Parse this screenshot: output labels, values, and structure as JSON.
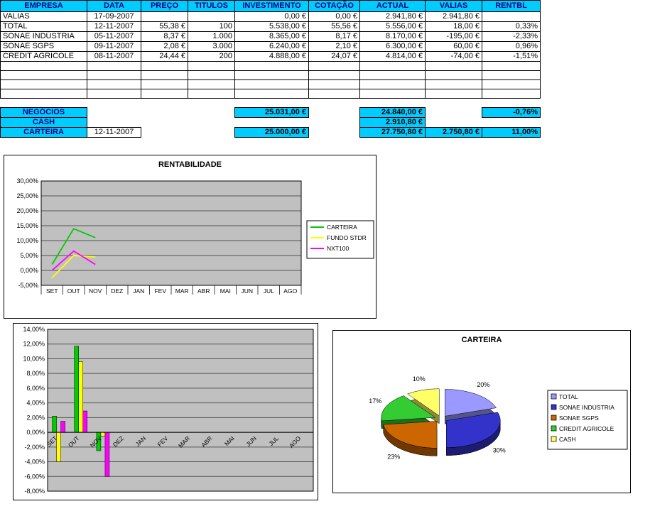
{
  "table": {
    "headers": [
      "EMPRESA",
      "DATA",
      "PREÇO",
      "TITULOS",
      "INVESTIMENTO",
      "COTAÇÃO",
      "ACTUAL",
      "VALIAS",
      "RENTBL"
    ],
    "rows": [
      [
        "VALIAS",
        "17-09-2007",
        "",
        "",
        "0,00 €",
        "0,00 €",
        "2.941,80 €",
        "2.941,80 €",
        ""
      ],
      [
        "TOTAL",
        "12-11-2007",
        "55,38 €",
        "100",
        "5.538,00 €",
        "55,56 €",
        "5.556,00 €",
        "18,00 €",
        "0,33%"
      ],
      [
        "SONAE INDÚSTRIA",
        "05-11-2007",
        "8,37 €",
        "1.000",
        "8.365,00 €",
        "8,17 €",
        "8.170,00 €",
        "-195,00 €",
        "-2,33%"
      ],
      [
        "SONAE SGPS",
        "09-11-2007",
        "2,08 €",
        "3.000",
        "6.240,00 €",
        "2,10 €",
        "6.300,00 €",
        "60,00 €",
        "0,96%"
      ],
      [
        "CREDIT AGRICOLE",
        "08-11-2007",
        "24,44 €",
        "200",
        "4.888,00 €",
        "24,07 €",
        "4.814,00 €",
        "-74,00 €",
        "-1,51%"
      ],
      [
        "",
        "",
        "",
        "",
        "",
        "",
        "",
        "",
        ""
      ],
      [
        "",
        "",
        "",
        "",
        "",
        "",
        "",
        "",
        ""
      ],
      [
        "",
        "",
        "",
        "",
        "",
        "",
        "",
        "",
        ""
      ],
      [
        "",
        "",
        "",
        "",
        "",
        "",
        "",
        "",
        ""
      ]
    ],
    "summary": [
      {
        "cells": [
          "NEGÓCIOS",
          "",
          "",
          "",
          "25.031,00 €",
          "",
          "24.840,00 €",
          "",
          "-0,76%"
        ],
        "hl": [
          0,
          4,
          6,
          8
        ]
      },
      {
        "cells": [
          "CASH",
          "",
          "",
          "",
          "",
          "",
          "2.910,80 €",
          "",
          ""
        ],
        "hl": [
          0,
          6
        ]
      },
      {
        "cells": [
          "CARTEIRA",
          "12-11-2007",
          "",
          "",
          "25.000,00 €",
          "",
          "27.750,80 €",
          "2.750,80 €",
          "11,00%"
        ],
        "hl": [
          0,
          4,
          6,
          7,
          8
        ]
      }
    ],
    "colors": {
      "highlight_bg": "#00CCFF",
      "header_text": "#000080"
    }
  },
  "chart_data": [
    {
      "type": "line",
      "title": "RENTABILIDADE",
      "categories": [
        "SET",
        "OUT",
        "NOV",
        "DEZ",
        "JAN",
        "FEV",
        "MAR",
        "ABR",
        "MAI",
        "JUN",
        "JUL",
        "AGO"
      ],
      "ylim": [
        -5,
        30
      ],
      "ystep": 5,
      "grid": true,
      "plot_bg": "#C0C0C0",
      "legend_position": "right",
      "series": [
        {
          "name": "CARTEIRA",
          "color": "#00CC00",
          "values": [
            2,
            14,
            11,
            null,
            null,
            null,
            null,
            null,
            null,
            null,
            null,
            null
          ]
        },
        {
          "name": "FUNDO STDR",
          "color": "#FFFF00",
          "values": [
            -2.5,
            5,
            4.5,
            null,
            null,
            null,
            null,
            null,
            null,
            null,
            null,
            null
          ]
        },
        {
          "name": "NXT100",
          "color": "#FF00FF",
          "values": [
            0,
            6.5,
            2,
            null,
            null,
            null,
            null,
            null,
            null,
            null,
            null,
            null
          ]
        }
      ]
    },
    {
      "type": "bar",
      "title": "",
      "categories": [
        "SET",
        "OUT",
        "NOV",
        "DEZ",
        "JAN",
        "FEV",
        "MAR",
        "ABR",
        "MAI",
        "JUN",
        "JUL",
        "AGO"
      ],
      "ylim": [
        -8,
        14
      ],
      "ystep": 2,
      "grid": true,
      "plot_bg": "#C0C0C0",
      "legend_position": "none",
      "series": [
        {
          "name": "CARTEIRA",
          "color": "#00CC00",
          "values": [
            2.2,
            11.7,
            -2.5,
            null,
            null,
            null,
            null,
            null,
            null,
            null,
            null,
            null
          ]
        },
        {
          "name": "FUNDO STDR",
          "color": "#FFFF00",
          "values": [
            -4,
            9.6,
            -0.5,
            null,
            null,
            null,
            null,
            null,
            null,
            null,
            null,
            null
          ]
        },
        {
          "name": "NXT100",
          "color": "#FF00FF",
          "values": [
            1.5,
            2.9,
            -6,
            null,
            null,
            null,
            null,
            null,
            null,
            null,
            null,
            null
          ]
        }
      ]
    },
    {
      "type": "pie",
      "title": "CARTEIRA",
      "labels": [
        "TOTAL",
        "SONAE INDÚSTRIA",
        "SONAE SGPS",
        "CREDIT AGRICOLE",
        "CASH"
      ],
      "values": [
        20,
        30,
        23,
        17,
        10
      ],
      "value_labels": [
        "20%",
        "30%",
        "23%",
        "17%",
        "10%"
      ],
      "colors": [
        "#9999FF",
        "#3333CC",
        "#CC6600",
        "#33CC33",
        "#FFFF66"
      ],
      "legend_position": "right"
    }
  ]
}
